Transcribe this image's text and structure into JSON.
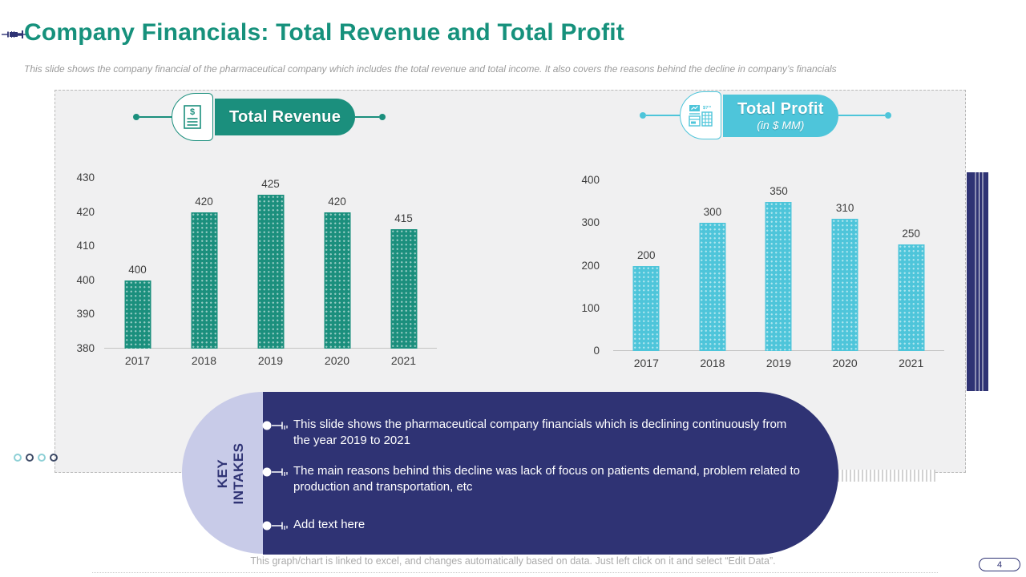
{
  "slide": {
    "title": "Company Financials: Total Revenue and Total Profit",
    "subtitle": "This slide shows the company financial of the pharmaceutical company which includes the total revenue and total income. It also covers the reasons behind the decline in company’s financials",
    "footer_note": "This graph/chart is linked to excel, and changes automatically based on data. Just left click on it and select “Edit Data”.",
    "page_number": "4",
    "colors": {
      "teal": "#1b8f7d",
      "cyan": "#4ec5da",
      "navy": "#2f3374",
      "lavender": "#c8cbe8",
      "panel_bg": "#f0f0f1"
    },
    "icons": {
      "title": "syringe-icon",
      "revenue_header": "dollar-document-icon",
      "profit_header": "invoice-calculator-icon",
      "bullet": "syringe-bullet-icon"
    }
  },
  "key_intakes": {
    "label": "KEY INTAKES",
    "items": [
      "This slide shows the pharmaceutical company financials which is declining continuously from the year 2019 to 2021",
      "The main reasons behind this decline was lack of focus on patients demand, problem related to production and transportation, etc",
      "Add text here"
    ]
  },
  "chart_data": [
    {
      "type": "bar",
      "title": "Total Revenue",
      "subtitle": "",
      "categories": [
        "2017",
        "2018",
        "2019",
        "2020",
        "2021"
      ],
      "values": [
        400,
        420,
        425,
        420,
        415
      ],
      "ylim": [
        380,
        430
      ],
      "yticks": [
        430,
        420,
        410,
        400,
        390,
        380
      ],
      "bar_color": "#1b8f7d",
      "grid": false,
      "legend": "none",
      "data_labels": true
    },
    {
      "type": "bar",
      "title": "Total Profit",
      "subtitle": "(in $ MM)",
      "categories": [
        "2017",
        "2018",
        "2019",
        "2020",
        "2021"
      ],
      "values": [
        200,
        300,
        350,
        310,
        250
      ],
      "ylim": [
        0,
        400
      ],
      "yticks": [
        400,
        300,
        200,
        100,
        0
      ],
      "bar_color": "#4ec5da",
      "grid": false,
      "legend": "none",
      "data_labels": true
    }
  ]
}
